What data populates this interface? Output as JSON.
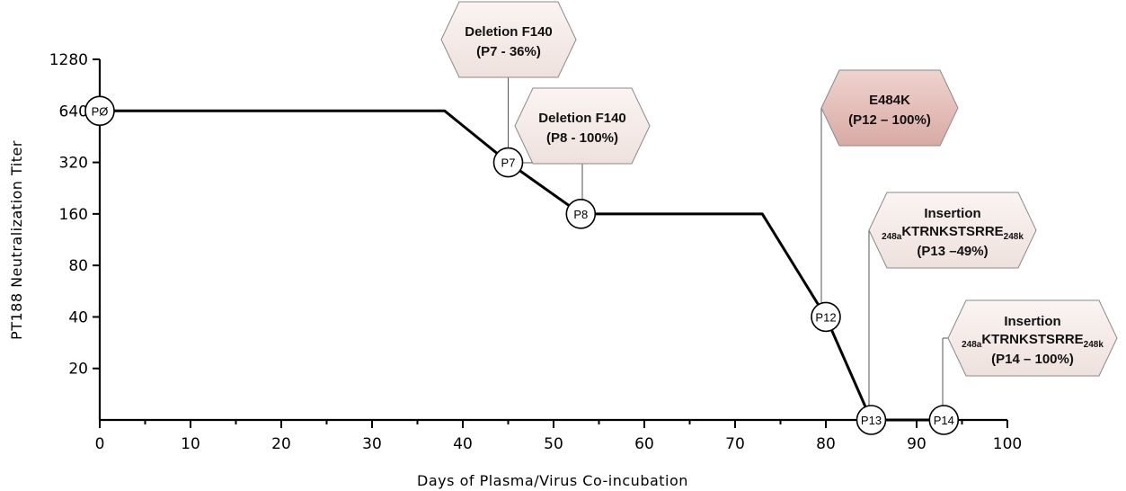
{
  "chart_data": {
    "type": "line",
    "xlabel": "Days of Plasma/Virus Co-incubation",
    "ylabel": "PT188 Neutralization Titer",
    "x_ticks": [
      0,
      10,
      20,
      30,
      40,
      50,
      60,
      70,
      80,
      90,
      100
    ],
    "y_ticks": [
      "1280",
      "640",
      "320",
      "160",
      "80",
      "40",
      "20"
    ],
    "xlim": [
      0,
      100
    ],
    "ylim": [
      10,
      1280
    ],
    "y_scale": "log2",
    "grid": false,
    "line": [
      {
        "x": 0,
        "y": 640
      },
      {
        "x": 38,
        "y": 640
      },
      {
        "x": 45,
        "y": 320
      },
      {
        "x": 53,
        "y": 160
      },
      {
        "x": 73,
        "y": 160
      },
      {
        "x": 80,
        "y": 40
      },
      {
        "x": 85,
        "y": 10
      },
      {
        "x": 93,
        "y": 10
      }
    ],
    "markers": [
      {
        "label": "PØ",
        "x": 0,
        "y": 640
      },
      {
        "label": "P7",
        "x": 45,
        "y": 320
      },
      {
        "label": "P8",
        "x": 53,
        "y": 160
      },
      {
        "label": "P12",
        "x": 80,
        "y": 40
      },
      {
        "label": "P13",
        "x": 85,
        "y": 10
      },
      {
        "label": "P14",
        "x": 93,
        "y": 10
      }
    ],
    "annotations": [
      {
        "marker": "P7",
        "line1": "Deletion F140",
        "line2": "(P7 - 36%)",
        "highlight": false
      },
      {
        "marker": "P8",
        "line1": "Deletion F140",
        "line2": "(P8 - 100%)",
        "highlight": false
      },
      {
        "marker": "P12",
        "line1": "E484K",
        "line2": "(P12 – 100%)",
        "highlight": true
      },
      {
        "marker": "P13",
        "line1": "Insertion",
        "seq_pre": "248a",
        "seq": "KTRNKSTSRRE",
        "seq_post": "248k",
        "line3": "(P13 –49%)",
        "highlight": false
      },
      {
        "marker": "P14",
        "line1": "Insertion",
        "seq_pre": "248a",
        "seq": "KTRNKSTSRRE",
        "seq_post": "248k",
        "line3": "(P14 – 100%)",
        "highlight": false
      }
    ]
  }
}
